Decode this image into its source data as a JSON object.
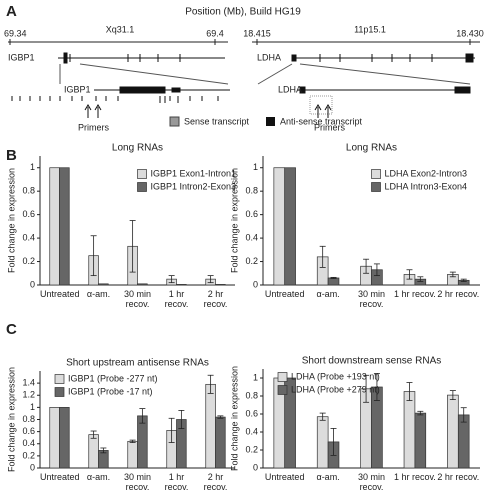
{
  "panel_a": {
    "label": "A",
    "title": "Position (Mb), Build HG19",
    "loci": [
      {
        "band": "Xq31.1",
        "ticks": [
          69.34,
          69.4
        ],
        "gene": "IGBP1",
        "gene_zoom": "IGBP1",
        "primers": "Primers"
      },
      {
        "band": "11p15.1",
        "ticks": [
          18.415,
          {
            "value": 18.43,
            "label": "18.430"
          }
        ],
        "gene": "LDHA",
        "gene_zoom": "LDHA",
        "primers": "Primers"
      }
    ],
    "legend": [
      "Sense transcript",
      "Anti-sense transcript"
    ]
  },
  "panel_labels": [
    "B",
    "C"
  ],
  "chart_data": [
    {
      "type": "bar",
      "title": "Long RNAs",
      "ylabel": "Fold change in expression",
      "categories": [
        "Untreated",
        "α-am.",
        "30 min recov.",
        "1 hr recov.",
        "2 hr recov."
      ],
      "series": [
        {
          "name": "IGBP1 Exon1-Intron1",
          "color": "#dcdcdc",
          "values": [
            1,
            0.25,
            0.33,
            0.05,
            0.05
          ],
          "errors": [
            null,
            0.17,
            0.22,
            0.03,
            0.03
          ]
        },
        {
          "name": "IGBP1 Intron2-Exon3",
          "color": "#666666",
          "values": [
            1,
            0.01,
            0.01,
            0.005,
            0.005
          ],
          "errors": [
            null,
            null,
            null,
            null,
            null
          ]
        }
      ],
      "ylim": [
        0,
        1.1
      ],
      "yticks": [
        0,
        0.2,
        0.4,
        0.6,
        0.8,
        1
      ],
      "legend": "upper right"
    },
    {
      "type": "bar",
      "title": "Long RNAs",
      "ylabel": "Fold change in expression",
      "categories": [
        "Untreated",
        "α-am.",
        "30 min recov.",
        "1 hr recov.",
        "2 hr recov."
      ],
      "series": [
        {
          "name": "LDHA Exon2-Intron3",
          "color": "#dcdcdc",
          "values": [
            1,
            0.24,
            0.16,
            0.09,
            0.09
          ],
          "errors": [
            null,
            0.09,
            0.06,
            0.04,
            0.02
          ]
        },
        {
          "name": "LDHA Intron3-Exon4",
          "color": "#666666",
          "values": [
            1,
            0.06,
            0.13,
            0.05,
            0.04
          ],
          "errors": [
            null,
            0.005,
            0.05,
            0.02,
            0.01
          ]
        }
      ],
      "ylim": [
        0,
        1.1
      ],
      "yticks": [
        0,
        0.2,
        0.4,
        0.6,
        0.8,
        1
      ],
      "legend": "upper right"
    },
    {
      "type": "bar",
      "title": "Short upstream antisense RNAs",
      "ylabel": "Fold change in expression",
      "categories": [
        "Untreated",
        "α-am.",
        "30 min recov.",
        "1 hr recov.",
        "2 hr recov."
      ],
      "series": [
        {
          "name": "IGBP1 (Probe -277 nt)",
          "color": "#dcdcdc",
          "values": [
            1,
            0.55,
            0.44,
            0.62,
            1.38
          ],
          "errors": [
            null,
            0.06,
            0.02,
            0.2,
            0.15
          ]
        },
        {
          "name": "IGBP1 (Probe -17 nt)",
          "color": "#666666",
          "values": [
            1,
            0.29,
            0.86,
            0.8,
            0.84
          ],
          "errors": [
            null,
            0.04,
            0.12,
            0.15,
            0.02
          ]
        }
      ],
      "ylim": [
        0,
        1.6
      ],
      "yticks": [
        0,
        0.2,
        0.4,
        0.6,
        0.8,
        1,
        1.2,
        1.4
      ],
      "legend": "upper left"
    },
    {
      "type": "bar",
      "title": "Short downstream sense RNAs",
      "ylabel": "Fold change in expression",
      "categories": [
        "Untreated",
        "α-am.",
        "30 min recov.",
        "1 hr recov.",
        "2 hr recov."
      ],
      "series": [
        {
          "name": "LDHA (Probe +193 nt)",
          "color": "#dcdcdc",
          "values": [
            1,
            0.57,
            0.88,
            0.85,
            0.81
          ],
          "errors": [
            null,
            0.04,
            0.15,
            0.1,
            0.05
          ]
        },
        {
          "name": "LDHA (Probe +279 nt)",
          "color": "#666666",
          "values": [
            1,
            0.29,
            0.9,
            0.61,
            0.59
          ],
          "errors": [
            null,
            0.15,
            0.15,
            0.02,
            0.08
          ]
        }
      ],
      "ylim": [
        0,
        1.1
      ],
      "yticks": [
        0,
        0.2,
        0.4,
        0.6,
        0.8,
        1
      ],
      "legend": "upper left"
    }
  ]
}
